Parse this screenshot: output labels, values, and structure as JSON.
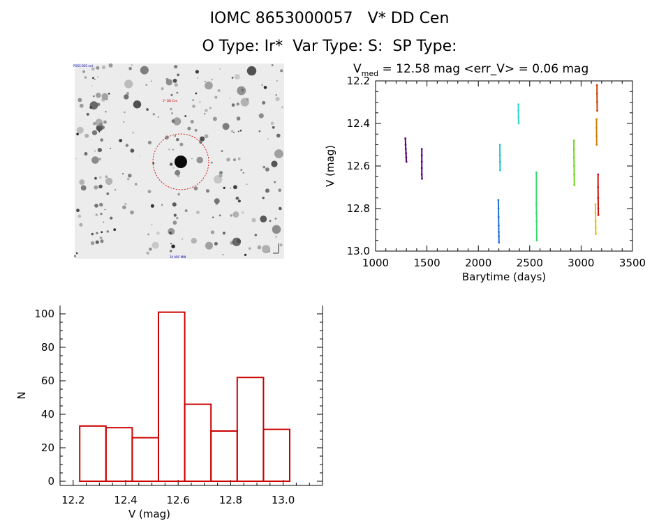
{
  "header": {
    "title_line1": "IOMC 8653000057   V* DD Cen",
    "title_line2": "O Type: Ir*  Var Type: S:  SP Type:"
  },
  "image_panel": {
    "corner_label_top_left": "POSS DSS red",
    "target_label": "V* DD Cen",
    "bottom_label": "10 ARC MIN",
    "bottom_left_label": "N",
    "marker_color": "#cc0000"
  },
  "chart_data": [
    {
      "type": "scatter",
      "title_prefix": "V",
      "title_subscript": "med",
      "title_suffix": " = 12.58 mag <err_V> = 0.06 mag",
      "xlabel": "Barytime (days)",
      "ylabel": "V (mag)",
      "xlim": [
        1000,
        3500
      ],
      "ylim": [
        13.0,
        12.2
      ],
      "y_inverted": true,
      "x_ticks": [
        1000,
        1500,
        2000,
        2500,
        3000,
        3500
      ],
      "y_ticks": [
        "12.2",
        "12.4",
        "12.6",
        "12.8",
        "13.0"
      ],
      "grid": false,
      "series": [
        {
          "color": "#5a006e",
          "points": [
            [
              1290,
              12.47
            ],
            [
              1292,
              12.5
            ],
            [
              1294,
              12.52
            ],
            [
              1296,
              12.54
            ],
            [
              1298,
              12.56
            ],
            [
              1300,
              12.58
            ]
          ]
        },
        {
          "color": "#5a0080",
          "points": [
            [
              1450,
              12.52
            ],
            [
              1450,
              12.55
            ],
            [
              1450,
              12.58
            ],
            [
              1450,
              12.61
            ],
            [
              1450,
              12.64
            ],
            [
              1452,
              12.66
            ]
          ]
        },
        {
          "color": "#1f6fd6",
          "points": [
            [
              2195,
              12.76
            ],
            [
              2196,
              12.8
            ],
            [
              2197,
              12.84
            ],
            [
              2198,
              12.88
            ],
            [
              2199,
              12.91
            ],
            [
              2200,
              12.93
            ],
            [
              2201,
              12.96
            ]
          ]
        },
        {
          "color": "#26c2d0",
          "points": [
            [
              2210,
              12.5
            ],
            [
              2210,
              12.55
            ],
            [
              2211,
              12.58
            ],
            [
              2212,
              12.62
            ]
          ]
        },
        {
          "color": "#30d8c8",
          "points": [
            [
              2390,
              12.31
            ],
            [
              2390,
              12.34
            ],
            [
              2391,
              12.37
            ],
            [
              2392,
              12.4
            ]
          ]
        },
        {
          "color": "#38d870",
          "points": [
            [
              2565,
              12.63
            ],
            [
              2565,
              12.78
            ],
            [
              2566,
              12.82
            ],
            [
              2567,
              12.86
            ],
            [
              2568,
              12.9
            ],
            [
              2569,
              12.95
            ]
          ]
        },
        {
          "color": "#70d820",
          "points": [
            [
              2930,
              12.48
            ],
            [
              2930,
              12.52
            ],
            [
              2931,
              12.56
            ],
            [
              2932,
              12.6
            ],
            [
              2933,
              12.64
            ],
            [
              2934,
              12.69
            ]
          ]
        },
        {
          "color": "#e6c200",
          "points": [
            [
              3140,
              12.78
            ],
            [
              3140,
              12.82
            ],
            [
              3141,
              12.86
            ],
            [
              3142,
              12.89
            ],
            [
              3143,
              12.92
            ]
          ]
        },
        {
          "color": "#d08000",
          "points": [
            [
              3150,
              12.38
            ],
            [
              3150,
              12.42
            ],
            [
              3151,
              12.46
            ],
            [
              3152,
              12.5
            ]
          ]
        },
        {
          "color": "#d04000",
          "points": [
            [
              3155,
              12.22
            ],
            [
              3155,
              12.26
            ],
            [
              3156,
              12.3
            ],
            [
              3157,
              12.34
            ]
          ]
        },
        {
          "color": "#cc1010",
          "points": [
            [
              3165,
              12.64
            ],
            [
              3165,
              12.7
            ],
            [
              3166,
              12.75
            ],
            [
              3167,
              12.8
            ],
            [
              3168,
              12.83
            ]
          ]
        }
      ]
    },
    {
      "type": "bar",
      "xlabel": "V (mag)",
      "ylabel": "N",
      "xlim": [
        12.15,
        13.15
      ],
      "ylim": [
        0,
        105
      ],
      "x_ticks": [
        "12.2",
        "12.4",
        "12.6",
        "12.8",
        "13.0"
      ],
      "y_ticks": [
        0,
        20,
        40,
        60,
        80,
        100
      ],
      "bin_edges": [
        12.225,
        12.325,
        12.425,
        12.525,
        12.625,
        12.725,
        12.825,
        12.925,
        13.025
      ],
      "values": [
        33,
        32,
        26,
        101,
        46,
        30,
        62,
        31
      ],
      "bar_color": "#cc0000",
      "grid": false
    }
  ]
}
